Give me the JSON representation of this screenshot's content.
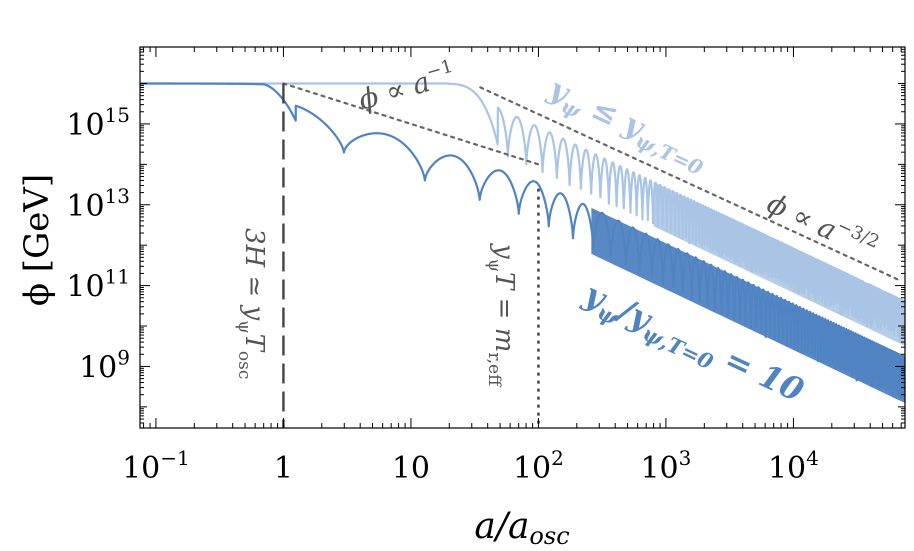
{
  "chart_data": {
    "type": "line",
    "xscale": "log",
    "yscale": "log",
    "xlim": [
      0.075,
      75000
    ],
    "ylim": [
      30000000.0,
      8e+16
    ],
    "xlabel": "a/a",
    "xlabel_sub": "osc",
    "ylabel": "ϕ [GeV]",
    "x_ticks": [
      {
        "value": 0.1,
        "base": "10",
        "exp": "−1"
      },
      {
        "value": 1,
        "base": "1",
        "exp": ""
      },
      {
        "value": 10,
        "base": "10",
        "exp": ""
      },
      {
        "value": 100,
        "base": "10",
        "exp": "2"
      },
      {
        "value": 1000,
        "base": "10",
        "exp": "3"
      },
      {
        "value": 10000,
        "base": "10",
        "exp": "4"
      }
    ],
    "y_ticks": [
      {
        "value": 1000000000.0,
        "base": "10",
        "exp": "9"
      },
      {
        "value": 100000000000.0,
        "base": "10",
        "exp": "11"
      },
      {
        "value": 10000000000000.0,
        "base": "10",
        "exp": "13"
      },
      {
        "value": 1000000000000000.0,
        "base": "10",
        "exp": "15"
      }
    ],
    "series": [
      {
        "name": "y_ψ ≤ y_ψ,T=0",
        "color": "#a9c4e4",
        "phi0": 1e+16,
        "onset": 20,
        "first_min": 48,
        "scaling": -1.5,
        "oscillation_depth_decades": 1.1
      },
      {
        "name": "y_ψ / y_ψ,T=0 = 10",
        "color": "#4f83c2",
        "phi0": 1e+16,
        "onset": 0.7,
        "first_min": 1.25,
        "first_max_decades": 0.95,
        "transition_a": 100,
        "scaling_early": -1,
        "scaling_late": -1.5,
        "oscillation_depth_decades": 1.2
      }
    ],
    "reference_lines": [
      {
        "name": "phi-prop-a-inv",
        "slope": -1,
        "x": [
          1,
          100
        ],
        "y": [
          1e+16,
          100000000000000.0
        ],
        "color": "#666666",
        "style": "dotted"
      },
      {
        "name": "phi-prop-a-3half",
        "slope": -1.5,
        "x": [
          35,
          70000
        ],
        "y": [
          8000000000000000.0,
          130000000000.0
        ],
        "color": "#666666",
        "style": "dotted"
      }
    ],
    "vertical_lines": [
      {
        "name": "3H-equals-yT-osc",
        "x": 1,
        "style": "dashed",
        "color": "#444444"
      },
      {
        "name": "yT-equals-m-eff",
        "x": 100,
        "style": "dotted",
        "color": "#444444"
      }
    ],
    "annotations": {
      "prop_a_inv": {
        "phi": "ϕ",
        "prop": " ∝ a",
        "exp": "−1"
      },
      "prop_a_3half": {
        "phi": "ϕ",
        "prop": " ∝ a",
        "exp": "−3/2"
      },
      "light_label": {
        "y": "y",
        "sub1": "ψ",
        "rel": " ≤ y",
        "sub2": "ψ,T=0"
      },
      "dark_label": {
        "y": "y",
        "sub1": "ψ",
        "slash": "/y",
        "sub2": "ψ,T=0",
        "eq": " = 10"
      },
      "vline1_label": {
        "lhs": "3H ≃ y",
        "sub1": "ψ",
        "T": "T",
        "sub2": "osc"
      },
      "vline2_label": {
        "lhs": "y",
        "sub1": "ψ",
        "mid": "T = m",
        "sub2": "r,eff"
      }
    }
  }
}
